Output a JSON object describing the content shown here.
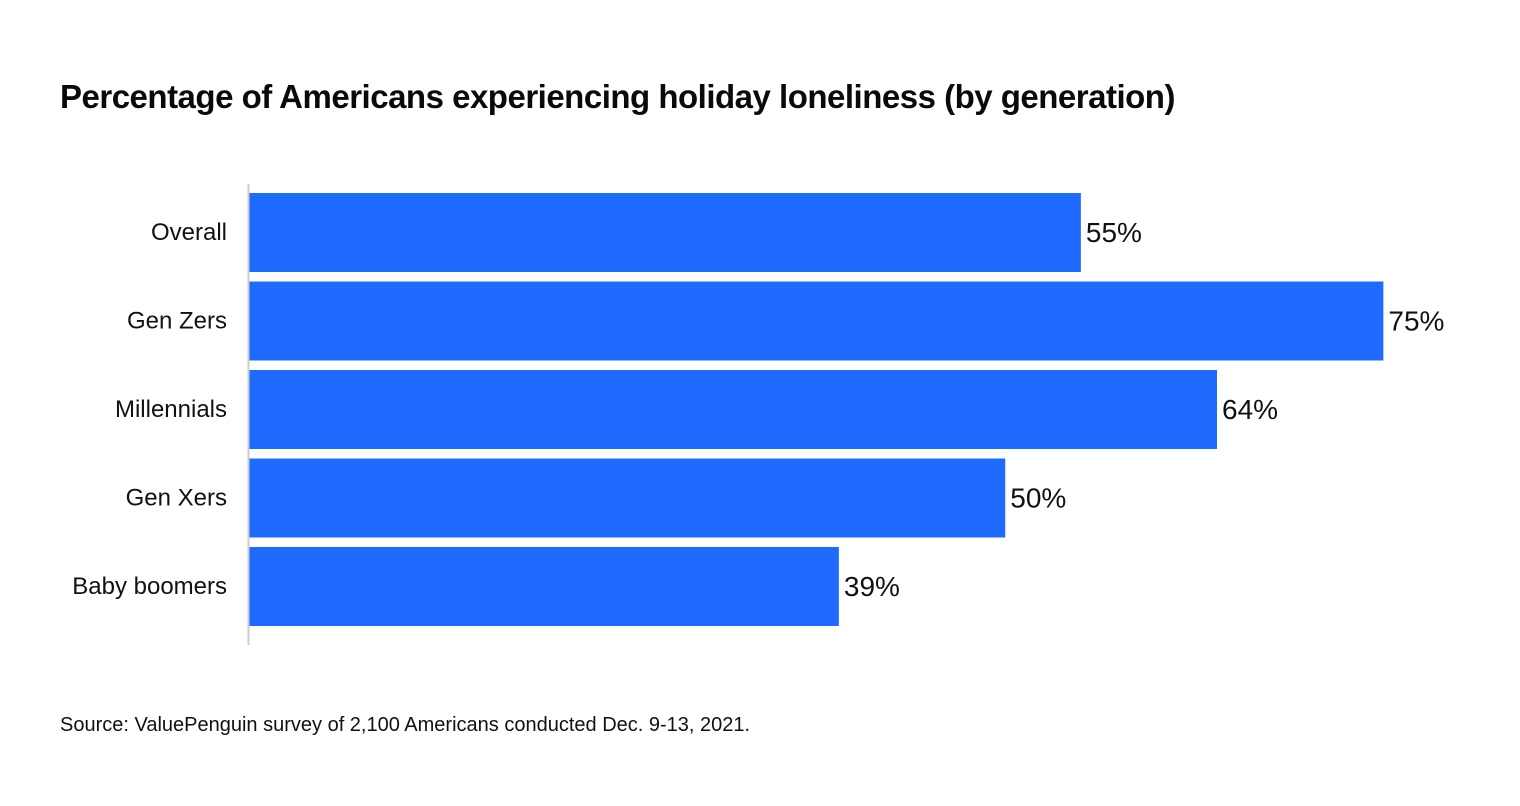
{
  "chart_data": {
    "type": "bar",
    "orientation": "horizontal",
    "title": "Percentage of Americans experiencing holiday loneliness (by generation)",
    "categories": [
      "Overall",
      "Gen Zers",
      "Millennials",
      "Gen Xers",
      "Baby boomers"
    ],
    "values": [
      55,
      75,
      64,
      50,
      39
    ],
    "value_labels": [
      "55%",
      "75%",
      "64%",
      "50%",
      "39%"
    ],
    "xlim": [
      0,
      100
    ],
    "grid": false,
    "legend": "none",
    "bar_color": "#1f6bff",
    "axis_color": "#cccccc"
  },
  "source": "Source: ValuePenguin survey of 2,100 Americans conducted Dec. 9-13, 2021."
}
